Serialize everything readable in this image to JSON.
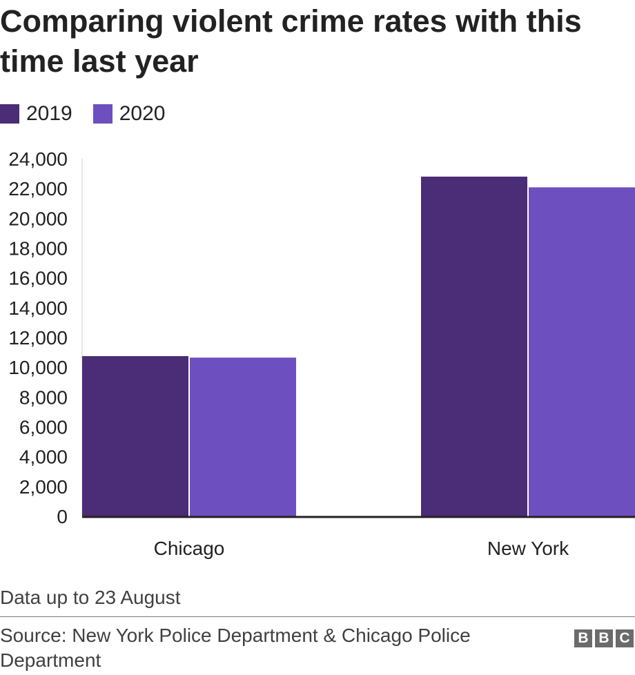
{
  "title": "Comparing violent crime rates with this time last year",
  "legend": [
    {
      "label": "2019",
      "color": "#4b2c77"
    },
    {
      "label": "2020",
      "color": "#6e4fbf"
    }
  ],
  "chart_data": {
    "type": "bar",
    "categories": [
      "Chicago",
      "New York"
    ],
    "series": [
      {
        "name": "2019",
        "values": [
          10750,
          22800
        ],
        "color": "#4b2c77"
      },
      {
        "name": "2020",
        "values": [
          10650,
          22080
        ],
        "color": "#6e4fbf"
      }
    ],
    "ylim": [
      0,
      24000
    ],
    "yticks": [
      0,
      2000,
      4000,
      6000,
      8000,
      10000,
      12000,
      14000,
      16000,
      18000,
      20000,
      22000,
      24000
    ],
    "ytick_labels": [
      "0",
      "2,000",
      "4,000",
      "6,000",
      "8,000",
      "10,000",
      "12,000",
      "14,000",
      "16,000",
      "18,000",
      "20,000",
      "22,000",
      "24,000"
    ],
    "xlabel": "",
    "ylabel": "",
    "grid": false,
    "legend_position": "top-left"
  },
  "note": "Data up to 23 August",
  "source": "Source: New York Police Department & Chicago Police Department",
  "logo": [
    "B",
    "B",
    "C"
  ]
}
